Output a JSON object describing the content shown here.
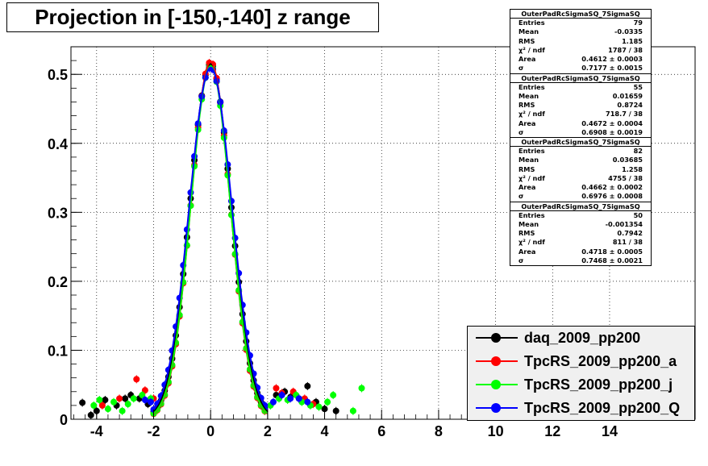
{
  "title": "Projection in [-150,-140] z range",
  "stat_boxes": [
    {
      "name": "OuterPadRcSigmaSQ_7SigmaSQ",
      "rows": [
        {
          "label": "Entries",
          "value": "79"
        },
        {
          "label": "Mean",
          "value": "-0.0335"
        },
        {
          "label": "RMS",
          "value": "1.185"
        },
        {
          "label": "χ² / ndf",
          "value": "1787 / 38"
        },
        {
          "label": "Area",
          "value": "0.4612 ± 0.0003"
        },
        {
          "label": "σ",
          "value": "0.7177 ± 0.0015"
        }
      ]
    },
    {
      "name": "OuterPadRcSigmaSQ_7SigmaSQ",
      "rows": [
        {
          "label": "Entries",
          "value": "55"
        },
        {
          "label": "Mean",
          "value": "0.01659"
        },
        {
          "label": "RMS",
          "value": "0.8724"
        },
        {
          "label": "χ² / ndf",
          "value": "718.7 / 38"
        },
        {
          "label": "Area",
          "value": "0.4672 ± 0.0004"
        },
        {
          "label": "σ",
          "value": "0.6908 ± 0.0019"
        }
      ]
    },
    {
      "name": "OuterPadRcSigmaSQ_7SigmaSQ",
      "rows": [
        {
          "label": "Entries",
          "value": "82"
        },
        {
          "label": "Mean",
          "value": "0.03685"
        },
        {
          "label": "RMS",
          "value": "1.258"
        },
        {
          "label": "χ² / ndf",
          "value": "4755 / 38"
        },
        {
          "label": "Area",
          "value": "0.4662 ± 0.0002"
        },
        {
          "label": "σ",
          "value": "0.6976 ± 0.0008"
        }
      ]
    },
    {
      "name": "OuterPadRcSigmaSQ_7SigmaSQ",
      "rows": [
        {
          "label": "Entries",
          "value": "50"
        },
        {
          "label": "Mean",
          "value": "-0.001354"
        },
        {
          "label": "RMS",
          "value": "0.7942"
        },
        {
          "label": "χ² / ndf",
          "value": "811 / 38"
        },
        {
          "label": "Area",
          "value": "0.4718 ± 0.0005"
        },
        {
          "label": "σ",
          "value": "0.7468 ± 0.0021"
        }
      ]
    }
  ],
  "legend": [
    {
      "label": "daq_2009_pp200",
      "color": "#000000"
    },
    {
      "label": "TpcRS_2009_pp200_a",
      "color": "#ff0000"
    },
    {
      "label": "TpcRS_2009_pp200_j",
      "color": "#00ff00"
    },
    {
      "label": "TpcRS_2009_pp200_Q",
      "color": "#0000ff"
    }
  ],
  "chart_data": {
    "type": "scatter",
    "title": "Projection in [-150,-140] z range",
    "xlim": [
      -4.9,
      17
    ],
    "ylim": [
      0,
      0.54
    ],
    "x_ticks": [
      -4,
      -2,
      0,
      2,
      4,
      6,
      8,
      10,
      12,
      14
    ],
    "y_ticks": [
      0,
      0.1,
      0.2,
      0.3,
      0.4,
      0.5
    ],
    "grid": true,
    "legend_position": "bottom-right",
    "series": [
      {
        "name": "daq_2009_pp200",
        "color": "#000000",
        "sigma": 0.7177,
        "peak": 0.515,
        "points": [
          [
            -4.5,
            0.024
          ],
          [
            -4.2,
            0.006
          ],
          [
            -4.0,
            0.012
          ],
          [
            -3.7,
            0.028
          ],
          [
            -3.3,
            0.02
          ],
          [
            -3.0,
            0.03
          ],
          [
            -2.8,
            0.035
          ],
          [
            -2.5,
            0.03
          ],
          [
            -2.2,
            0.022
          ],
          [
            2.3,
            0.035
          ],
          [
            2.6,
            0.04
          ],
          [
            2.8,
            0.032
          ],
          [
            3.1,
            0.03
          ],
          [
            3.4,
            0.048
          ],
          [
            3.7,
            0.025
          ],
          [
            4.0,
            0.015
          ],
          [
            4.4,
            0.012
          ]
        ]
      },
      {
        "name": "TpcRS_2009_pp200_a",
        "color": "#ff0000",
        "sigma": 0.6908,
        "peak": 0.518,
        "points": [
          [
            -3.8,
            0.02
          ],
          [
            -3.2,
            0.03
          ],
          [
            -2.6,
            0.058
          ],
          [
            -2.3,
            0.042
          ],
          [
            -2.0,
            0.03
          ],
          [
            2.3,
            0.045
          ],
          [
            2.5,
            0.038
          ],
          [
            2.9,
            0.04
          ],
          [
            3.3,
            0.03
          ],
          [
            3.6,
            0.022
          ]
        ]
      },
      {
        "name": "TpcRS_2009_pp200_j",
        "color": "#00ff00",
        "sigma": 0.6976,
        "peak": 0.512,
        "points": [
          [
            -4.1,
            0.02
          ],
          [
            -3.9,
            0.028
          ],
          [
            -3.6,
            0.015
          ],
          [
            -3.4,
            0.025
          ],
          [
            -3.1,
            0.012
          ],
          [
            -2.9,
            0.022
          ],
          [
            -2.7,
            0.03
          ],
          [
            -2.4,
            0.035
          ],
          [
            -2.1,
            0.03
          ],
          [
            2.1,
            0.02
          ],
          [
            2.4,
            0.03
          ],
          [
            2.7,
            0.028
          ],
          [
            3.0,
            0.035
          ],
          [
            3.2,
            0.025
          ],
          [
            3.5,
            0.02
          ],
          [
            3.8,
            0.018
          ],
          [
            4.1,
            0.025
          ],
          [
            4.3,
            0.035
          ],
          [
            5.0,
            0.012
          ],
          [
            5.3,
            0.045
          ]
        ]
      },
      {
        "name": "TpcRS_2009_pp200_Q",
        "color": "#0000ff",
        "sigma": 0.7468,
        "peak": 0.51,
        "points": [
          [
            -2.3,
            0.028
          ],
          [
            -2.1,
            0.025
          ],
          [
            2.2,
            0.025
          ],
          [
            2.5,
            0.035
          ],
          [
            2.8,
            0.03
          ],
          [
            3.1,
            0.03
          ],
          [
            3.4,
            0.025
          ]
        ]
      }
    ]
  }
}
